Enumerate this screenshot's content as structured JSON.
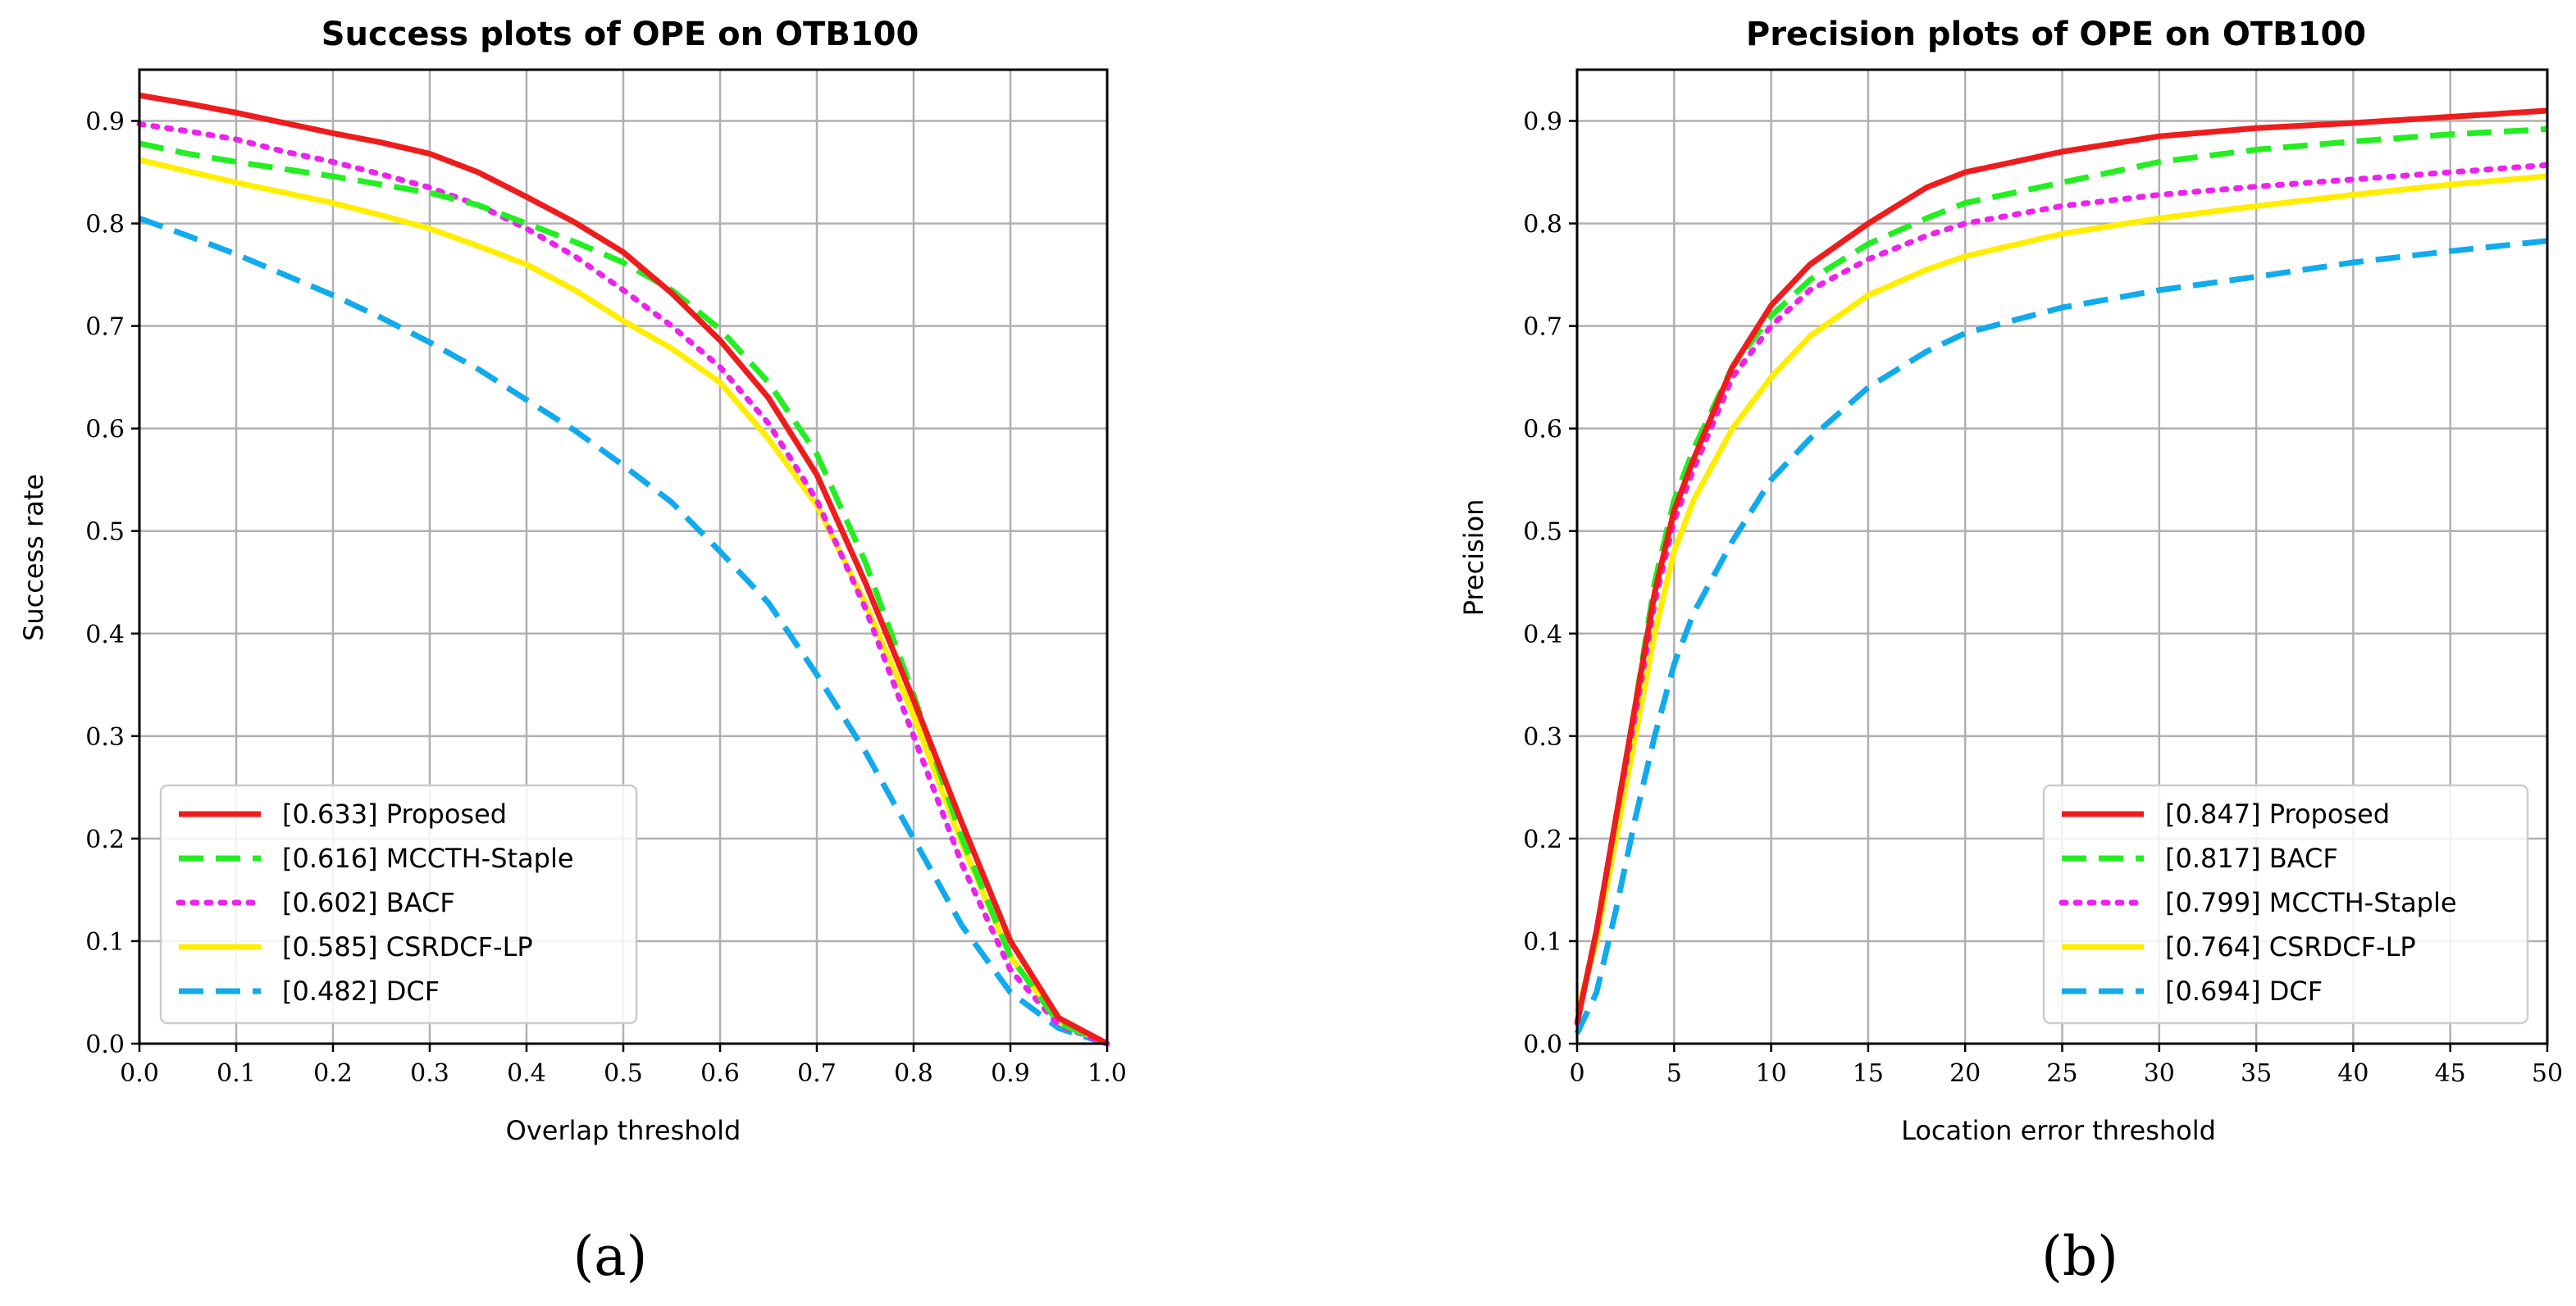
{
  "panel_labels": [
    "(a)",
    "(b)"
  ],
  "chart_data": [
    {
      "type": "line",
      "title": "Success plots of OPE on OTB100",
      "xlabel": "Overlap threshold",
      "ylabel": "Success rate",
      "xlim": [
        0,
        1
      ],
      "ylim": [
        0,
        0.95
      ],
      "xticks": [
        0.0,
        0.1,
        0.2,
        0.3,
        0.4,
        0.5,
        0.6,
        0.7,
        0.8,
        0.9,
        1.0
      ],
      "yticks": [
        0.0,
        0.1,
        0.2,
        0.3,
        0.4,
        0.5,
        0.6,
        0.7,
        0.8,
        0.9
      ],
      "tick_labels_x": [
        "0.0",
        "0.1",
        "0.2",
        "0.3",
        "0.4",
        "0.5",
        "0.6",
        "0.7",
        "0.8",
        "0.9",
        "1.0"
      ],
      "tick_labels_y": [
        "0.0",
        "0.1",
        "0.2",
        "0.3",
        "0.4",
        "0.5",
        "0.6",
        "0.7",
        "0.8",
        "0.9"
      ],
      "grid": true,
      "legend_position": "lower-left",
      "x": [
        0.0,
        0.05,
        0.1,
        0.15,
        0.2,
        0.25,
        0.3,
        0.35,
        0.4,
        0.45,
        0.5,
        0.55,
        0.6,
        0.65,
        0.7,
        0.75,
        0.8,
        0.85,
        0.9,
        0.95,
        1.0
      ],
      "series": [
        {
          "name": "[0.633] Proposed",
          "color": "#ee1c1c",
          "style": "solid",
          "values": [
            0.925,
            0.917,
            0.908,
            0.898,
            0.888,
            0.879,
            0.868,
            0.85,
            0.826,
            0.801,
            0.772,
            0.732,
            0.686,
            0.63,
            0.555,
            0.45,
            0.335,
            0.215,
            0.1,
            0.025,
            0.0
          ]
        },
        {
          "name": "[0.616] MCCTH-Staple",
          "color": "#22ee22",
          "style": "dashed",
          "values": [
            0.878,
            0.868,
            0.86,
            0.853,
            0.846,
            0.838,
            0.83,
            0.818,
            0.8,
            0.782,
            0.762,
            0.735,
            0.697,
            0.645,
            0.575,
            0.47,
            0.34,
            0.2,
            0.085,
            0.02,
            0.0
          ]
        },
        {
          "name": "[0.602] BACF",
          "color": "#ee22ee",
          "style": "dotted",
          "values": [
            0.897,
            0.89,
            0.882,
            0.87,
            0.86,
            0.848,
            0.835,
            0.818,
            0.795,
            0.768,
            0.735,
            0.7,
            0.66,
            0.605,
            0.53,
            0.425,
            0.3,
            0.175,
            0.072,
            0.018,
            0.0
          ]
        },
        {
          "name": "[0.585] CSRDCF-LP",
          "color": "#ffee00",
          "style": "solid",
          "values": [
            0.862,
            0.851,
            0.84,
            0.83,
            0.82,
            0.808,
            0.795,
            0.778,
            0.76,
            0.735,
            0.705,
            0.678,
            0.645,
            0.59,
            0.525,
            0.43,
            0.32,
            0.195,
            0.085,
            0.022,
            0.0
          ]
        },
        {
          "name": "[0.482] DCF",
          "color": "#11aaee",
          "style": "dashed",
          "values": [
            0.805,
            0.788,
            0.77,
            0.75,
            0.73,
            0.708,
            0.684,
            0.658,
            0.628,
            0.598,
            0.564,
            0.528,
            0.48,
            0.43,
            0.36,
            0.285,
            0.2,
            0.115,
            0.05,
            0.015,
            0.0
          ]
        }
      ]
    },
    {
      "type": "line",
      "title": "Precision plots of OPE on OTB100",
      "xlabel": "Location error threshold",
      "ylabel": "Precision",
      "xlim": [
        0,
        50
      ],
      "ylim": [
        0,
        0.95
      ],
      "xticks": [
        0,
        5,
        10,
        15,
        20,
        25,
        30,
        35,
        40,
        45,
        50
      ],
      "yticks": [
        0.0,
        0.1,
        0.2,
        0.3,
        0.4,
        0.5,
        0.6,
        0.7,
        0.8,
        0.9
      ],
      "tick_labels_x": [
        "0",
        "5",
        "10",
        "15",
        "20",
        "25",
        "30",
        "35",
        "40",
        "45",
        "50"
      ],
      "tick_labels_y": [
        "0.0",
        "0.1",
        "0.2",
        "0.3",
        "0.4",
        "0.5",
        "0.6",
        "0.7",
        "0.8",
        "0.9"
      ],
      "grid": true,
      "legend_position": "lower-right",
      "x": [
        0,
        1,
        2,
        3,
        4,
        5,
        6,
        8,
        10,
        12,
        15,
        18,
        20,
        25,
        30,
        35,
        40,
        45,
        50
      ],
      "series": [
        {
          "name": "[0.847] Proposed",
          "color": "#ee1c1c",
          "style": "solid",
          "values": [
            0.02,
            0.11,
            0.22,
            0.33,
            0.44,
            0.52,
            0.57,
            0.66,
            0.72,
            0.76,
            0.8,
            0.835,
            0.85,
            0.87,
            0.885,
            0.893,
            0.898,
            0.904,
            0.91
          ]
        },
        {
          "name": "[0.817] BACF",
          "color": "#22ee22",
          "style": "dashed",
          "values": [
            0.02,
            0.11,
            0.22,
            0.33,
            0.45,
            0.53,
            0.58,
            0.66,
            0.71,
            0.745,
            0.78,
            0.805,
            0.82,
            0.84,
            0.86,
            0.872,
            0.88,
            0.887,
            0.892
          ]
        },
        {
          "name": "[0.799] MCCTH-Staple",
          "color": "#ee22ee",
          "style": "dotted",
          "values": [
            0.02,
            0.11,
            0.22,
            0.32,
            0.43,
            0.51,
            0.56,
            0.65,
            0.7,
            0.735,
            0.765,
            0.788,
            0.8,
            0.817,
            0.828,
            0.836,
            0.843,
            0.85,
            0.857
          ]
        },
        {
          "name": "[0.764] CSRDCF-LP",
          "color": "#ffee00",
          "style": "solid",
          "values": [
            0.03,
            0.1,
            0.2,
            0.3,
            0.4,
            0.48,
            0.53,
            0.6,
            0.65,
            0.69,
            0.73,
            0.755,
            0.768,
            0.79,
            0.805,
            0.817,
            0.828,
            0.838,
            0.846
          ]
        },
        {
          "name": "[0.694] DCF",
          "color": "#11aaee",
          "style": "dashed",
          "values": [
            0.01,
            0.05,
            0.13,
            0.22,
            0.3,
            0.37,
            0.42,
            0.49,
            0.55,
            0.59,
            0.64,
            0.675,
            0.693,
            0.718,
            0.735,
            0.748,
            0.762,
            0.773,
            0.783
          ]
        }
      ]
    }
  ]
}
